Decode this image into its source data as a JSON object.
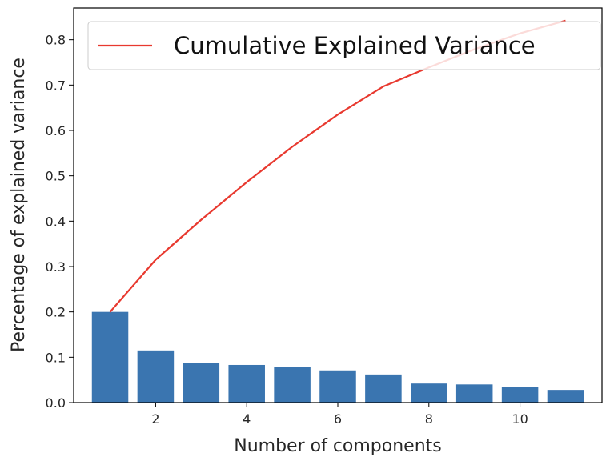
{
  "chart_data": {
    "type": "bar",
    "title": "",
    "xlabel": "Number of components",
    "ylabel": "Percentage of explained variance",
    "x": [
      1,
      2,
      3,
      4,
      5,
      6,
      7,
      8,
      9,
      10,
      11
    ],
    "xlim": [
      0.2,
      11.8
    ],
    "ylim": [
      0,
      0.87
    ],
    "xticks": [
      2,
      4,
      6,
      8,
      10
    ],
    "xtick_labels": [
      "2",
      "4",
      "6",
      "8",
      "10"
    ],
    "yticks": [
      0.0,
      0.1,
      0.2,
      0.3,
      0.4,
      0.5,
      0.6,
      0.7,
      0.8
    ],
    "ytick_labels": [
      "0.0",
      "0.1",
      "0.2",
      "0.3",
      "0.4",
      "0.5",
      "0.6",
      "0.7",
      "0.8"
    ],
    "grid": false,
    "legend_position": "top-right",
    "series": [
      {
        "type": "bar",
        "color": "#3a75b0",
        "values": [
          0.2,
          0.115,
          0.088,
          0.083,
          0.078,
          0.071,
          0.062,
          0.042,
          0.04,
          0.035,
          0.028
        ]
      },
      {
        "type": "line",
        "name": "Cumulative Explained Variance",
        "color": "#e8392f",
        "values": [
          0.2,
          0.315,
          0.403,
          0.486,
          0.564,
          0.635,
          0.697,
          0.739,
          0.779,
          0.814,
          0.842
        ]
      }
    ]
  }
}
